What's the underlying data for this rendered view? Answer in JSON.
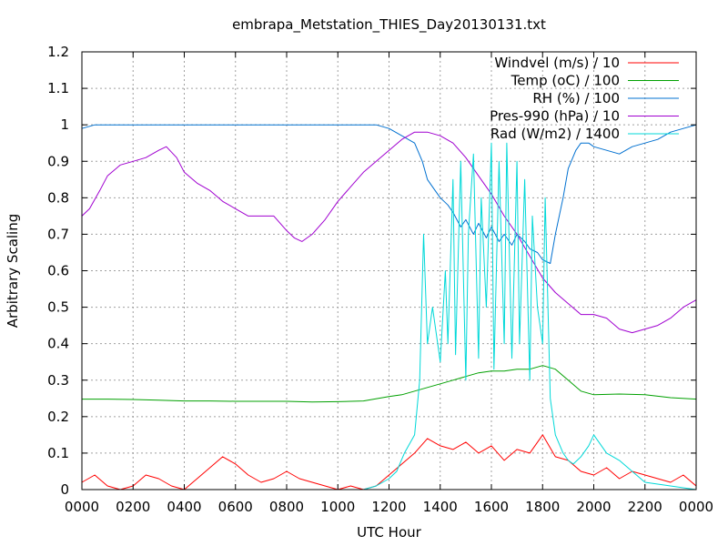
{
  "chart_data": {
    "type": "line",
    "title": "embrapa_Metstation_THIES_Day20130131.txt",
    "xlabel": "UTC Hour",
    "ylabel": "Arbitrary Scaling",
    "xlim": [
      0,
      24
    ],
    "ylim": [
      0,
      1.2
    ],
    "grid": true,
    "legend_position": "top-right",
    "x_ticks": [
      {
        "v": 0,
        "label": "0000"
      },
      {
        "v": 2,
        "label": "0200"
      },
      {
        "v": 4,
        "label": "0400"
      },
      {
        "v": 6,
        "label": "0600"
      },
      {
        "v": 8,
        "label": "0800"
      },
      {
        "v": 10,
        "label": "1000"
      },
      {
        "v": 12,
        "label": "1200"
      },
      {
        "v": 14,
        "label": "1400"
      },
      {
        "v": 16,
        "label": "1600"
      },
      {
        "v": 18,
        "label": "1800"
      },
      {
        "v": 20,
        "label": "2000"
      },
      {
        "v": 22,
        "label": "2200"
      },
      {
        "v": 24,
        "label": "0000"
      }
    ],
    "y_ticks": [
      {
        "v": 0,
        "label": "0"
      },
      {
        "v": 0.1,
        "label": "0.1"
      },
      {
        "v": 0.2,
        "label": "0.2"
      },
      {
        "v": 0.3,
        "label": "0.3"
      },
      {
        "v": 0.4,
        "label": "0.4"
      },
      {
        "v": 0.5,
        "label": "0.5"
      },
      {
        "v": 0.6,
        "label": "0.6"
      },
      {
        "v": 0.7,
        "label": "0.7"
      },
      {
        "v": 0.8,
        "label": "0.8"
      },
      {
        "v": 0.9,
        "label": "0.9"
      },
      {
        "v": 1,
        "label": "1"
      },
      {
        "v": 1.1,
        "label": "1.1"
      },
      {
        "v": 1.2,
        "label": "1.2"
      }
    ],
    "series": [
      {
        "name": "Windvel (m/s) / 10",
        "color": "#ff0000",
        "x": [
          0,
          0.5,
          1,
          1.5,
          2,
          2.5,
          3,
          3.5,
          4,
          4.5,
          5,
          5.5,
          6,
          6.5,
          7,
          7.5,
          8,
          8.5,
          9,
          9.5,
          10,
          10.5,
          11,
          11.5,
          12,
          12.5,
          13,
          13.5,
          14,
          14.5,
          15,
          15.5,
          16,
          16.5,
          17,
          17.5,
          18,
          18.5,
          19,
          19.5,
          20,
          20.5,
          21,
          21.5,
          22,
          22.5,
          23,
          23.5,
          24
        ],
        "y": [
          0.02,
          0.04,
          0.01,
          0.0,
          0.01,
          0.04,
          0.03,
          0.01,
          0.0,
          0.03,
          0.06,
          0.09,
          0.07,
          0.04,
          0.02,
          0.03,
          0.05,
          0.03,
          0.02,
          0.01,
          0.0,
          0.01,
          0.0,
          0.01,
          0.04,
          0.07,
          0.1,
          0.14,
          0.12,
          0.11,
          0.13,
          0.1,
          0.12,
          0.08,
          0.11,
          0.1,
          0.15,
          0.09,
          0.08,
          0.05,
          0.04,
          0.06,
          0.03,
          0.05,
          0.04,
          0.03,
          0.02,
          0.04,
          0.01
        ]
      },
      {
        "name": "Temp (oC) / 100",
        "color": "#00a000",
        "x": [
          0,
          1,
          2,
          3,
          4,
          5,
          6,
          7,
          8,
          9,
          10,
          11,
          12,
          12.5,
          13,
          13.5,
          14,
          14.5,
          15,
          15.5,
          16,
          16.5,
          17,
          17.5,
          18,
          18.5,
          19,
          19.5,
          20,
          21,
          22,
          23,
          24
        ],
        "y": [
          0.248,
          0.248,
          0.247,
          0.245,
          0.243,
          0.243,
          0.242,
          0.242,
          0.242,
          0.24,
          0.241,
          0.243,
          0.255,
          0.26,
          0.27,
          0.28,
          0.29,
          0.3,
          0.31,
          0.32,
          0.325,
          0.325,
          0.33,
          0.33,
          0.34,
          0.33,
          0.3,
          0.27,
          0.26,
          0.262,
          0.26,
          0.252,
          0.248
        ]
      },
      {
        "name": "RH (%) / 100",
        "color": "#0070d0",
        "x": [
          0,
          0.5,
          1,
          2,
          4,
          6,
          8,
          10,
          11,
          11.5,
          12,
          12.5,
          13,
          13.3,
          13.5,
          13.8,
          14,
          14.3,
          14.5,
          14.8,
          15,
          15.3,
          15.5,
          15.8,
          16,
          16.3,
          16.5,
          16.8,
          17,
          17.3,
          17.5,
          17.8,
          18,
          18.3,
          18.5,
          18.8,
          19,
          19.3,
          19.5,
          19.8,
          20,
          20.5,
          21,
          21.5,
          22,
          22.5,
          23,
          23.5,
          24
        ],
        "y": [
          0.99,
          1.0,
          1.0,
          1.0,
          1.0,
          1.0,
          1.0,
          1.0,
          1.0,
          1.0,
          0.99,
          0.97,
          0.95,
          0.9,
          0.85,
          0.82,
          0.8,
          0.78,
          0.76,
          0.72,
          0.74,
          0.7,
          0.73,
          0.69,
          0.72,
          0.68,
          0.7,
          0.67,
          0.7,
          0.68,
          0.66,
          0.65,
          0.63,
          0.62,
          0.7,
          0.8,
          0.88,
          0.93,
          0.95,
          0.95,
          0.94,
          0.93,
          0.92,
          0.94,
          0.95,
          0.96,
          0.98,
          0.99,
          1.0
        ]
      },
      {
        "name": "Pres-990 (hPa) / 10",
        "color": "#a000d0",
        "x": [
          0,
          0.3,
          0.7,
          1,
          1.5,
          2,
          2.5,
          3,
          3.3,
          3.7,
          4,
          4.5,
          5,
          5.5,
          6,
          6.5,
          7,
          7.5,
          8,
          8.3,
          8.6,
          9,
          9.5,
          10,
          10.5,
          11,
          11.5,
          12,
          12.5,
          13,
          13.5,
          14,
          14.5,
          15,
          15.5,
          16,
          16.5,
          17,
          17.5,
          18,
          18.5,
          19,
          19.5,
          20,
          20.5,
          21,
          21.5,
          22,
          22.5,
          23,
          23.5,
          24
        ],
        "y": [
          0.75,
          0.77,
          0.82,
          0.86,
          0.89,
          0.9,
          0.91,
          0.93,
          0.94,
          0.91,
          0.87,
          0.84,
          0.82,
          0.79,
          0.77,
          0.75,
          0.75,
          0.75,
          0.71,
          0.69,
          0.68,
          0.7,
          0.74,
          0.79,
          0.83,
          0.87,
          0.9,
          0.93,
          0.96,
          0.98,
          0.98,
          0.97,
          0.95,
          0.91,
          0.86,
          0.81,
          0.75,
          0.7,
          0.64,
          0.58,
          0.54,
          0.51,
          0.48,
          0.48,
          0.47,
          0.44,
          0.43,
          0.44,
          0.45,
          0.47,
          0.5,
          0.52
        ]
      },
      {
        "name": "Rad (W/m2) / 1400",
        "color": "#00d8d8",
        "x": [
          0,
          11,
          11.5,
          12,
          12.3,
          12.6,
          13,
          13.2,
          13.35,
          13.5,
          13.7,
          14,
          14.2,
          14.3,
          14.5,
          14.6,
          14.8,
          15,
          15.1,
          15.3,
          15.5,
          15.6,
          15.8,
          16,
          16.1,
          16.3,
          16.5,
          16.6,
          16.8,
          17,
          17.1,
          17.3,
          17.5,
          17.6,
          17.8,
          18,
          18.1,
          18.3,
          18.5,
          18.8,
          19,
          19.2,
          19.5,
          19.8,
          20,
          20.5,
          21,
          21.5,
          22,
          24
        ],
        "y": [
          0.0,
          0.0,
          0.01,
          0.03,
          0.05,
          0.1,
          0.15,
          0.3,
          0.7,
          0.4,
          0.5,
          0.35,
          0.6,
          0.4,
          0.85,
          0.37,
          0.9,
          0.3,
          0.7,
          0.92,
          0.36,
          0.8,
          0.5,
          0.95,
          0.33,
          0.9,
          0.4,
          0.95,
          0.36,
          0.9,
          0.4,
          0.85,
          0.3,
          0.75,
          0.5,
          0.4,
          0.8,
          0.25,
          0.15,
          0.1,
          0.08,
          0.07,
          0.09,
          0.12,
          0.15,
          0.1,
          0.08,
          0.05,
          0.02,
          0.0
        ]
      }
    ]
  }
}
